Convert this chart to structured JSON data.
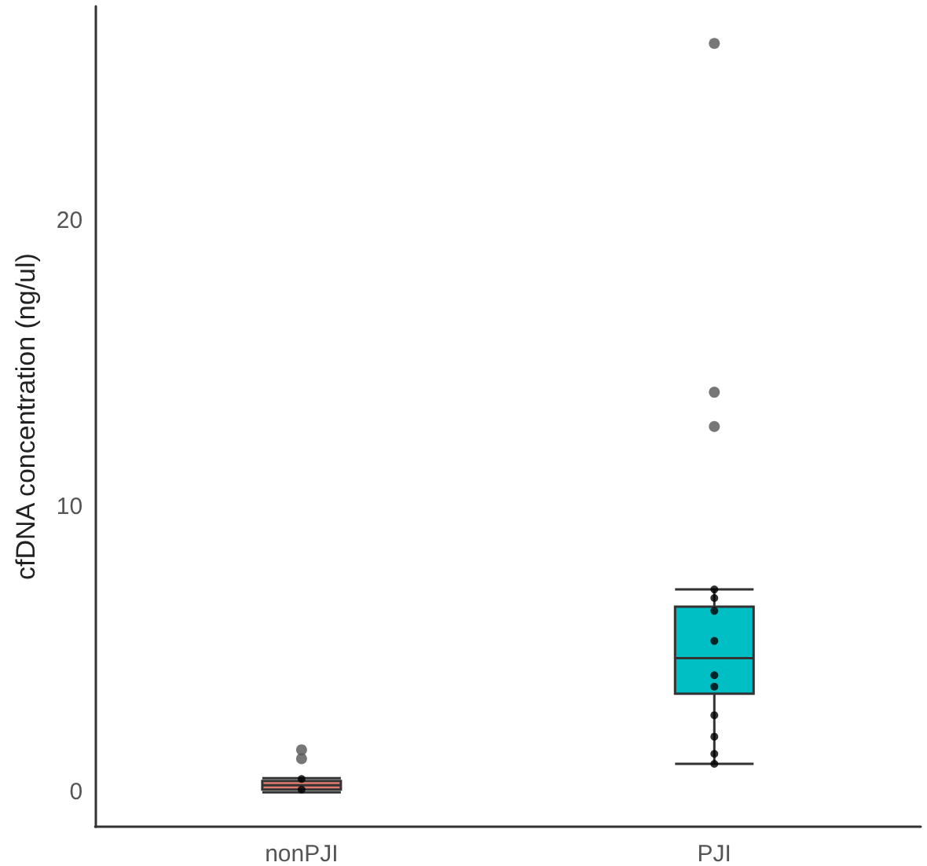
{
  "chart_data": {
    "type": "box",
    "ylabel": "cfDNA concentration (ng/ul)",
    "categories": [
      "nonPJI",
      "PJI"
    ],
    "colors": [
      "#e07b6f",
      "#00bfc4"
    ],
    "boxes": [
      {
        "low": 0,
        "q1": 0.1,
        "median": 0.25,
        "q3": 0.4,
        "high": 0.5,
        "outliers": [
          1.49,
          1.18
        ]
      },
      {
        "low": 1.0,
        "q1": 3.45,
        "median": 4.7,
        "q3": 6.5,
        "high": 7.1,
        "outliers": [
          26.2,
          14.0,
          12.8
        ]
      }
    ],
    "series": [
      {
        "type": "scatter",
        "color": "#000000",
        "x": [
          "nonPJI",
          "nonPJI",
          "PJI",
          "PJI",
          "PJI",
          "PJI",
          "PJI",
          "PJI",
          "PJI",
          "PJI",
          "PJI",
          "PJI"
        ],
        "values": [
          0.47,
          0.1,
          7.1,
          6.8,
          6.35,
          5.3,
          4.1,
          3.7,
          2.7,
          1.95,
          1.35,
          1.0
        ]
      }
    ],
    "ylim": [
      -1.2,
      27.5
    ],
    "yticks": [
      0,
      10,
      20
    ],
    "grid": false,
    "marker": "circle"
  }
}
